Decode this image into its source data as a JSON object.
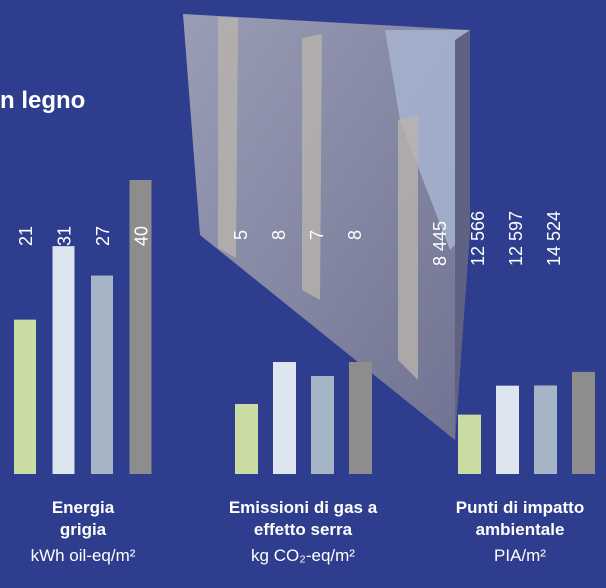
{
  "heading": "n legno",
  "chart_data": [
    {
      "type": "bar",
      "title": "Energia grigia",
      "unit": "kWh oil-eq/m²",
      "values": [
        21,
        31,
        27,
        40
      ],
      "colors": [
        "#c9dca2",
        "#dde5ee",
        "#a6b5c5",
        "#8d8d8d"
      ]
    },
    {
      "type": "bar",
      "title": "Emissioni di gas a effetto serra",
      "unit": "kg CO₂-eq/m²",
      "values": [
        5,
        8,
        7,
        8
      ],
      "colors": [
        "#c9dca2",
        "#dde5ee",
        "#a6b5c5",
        "#8d8d8d"
      ]
    },
    {
      "type": "bar",
      "title": "Punti di impatto ambientale",
      "unit": "PIA/m²",
      "values": [
        8445,
        12566,
        12597,
        14524
      ],
      "value_labels": [
        "8 445",
        "12 566",
        "12 597",
        "14 524"
      ],
      "colors": [
        "#c9dca2",
        "#dde5ee",
        "#a6b5c5",
        "#8d8d8d"
      ]
    }
  ]
}
